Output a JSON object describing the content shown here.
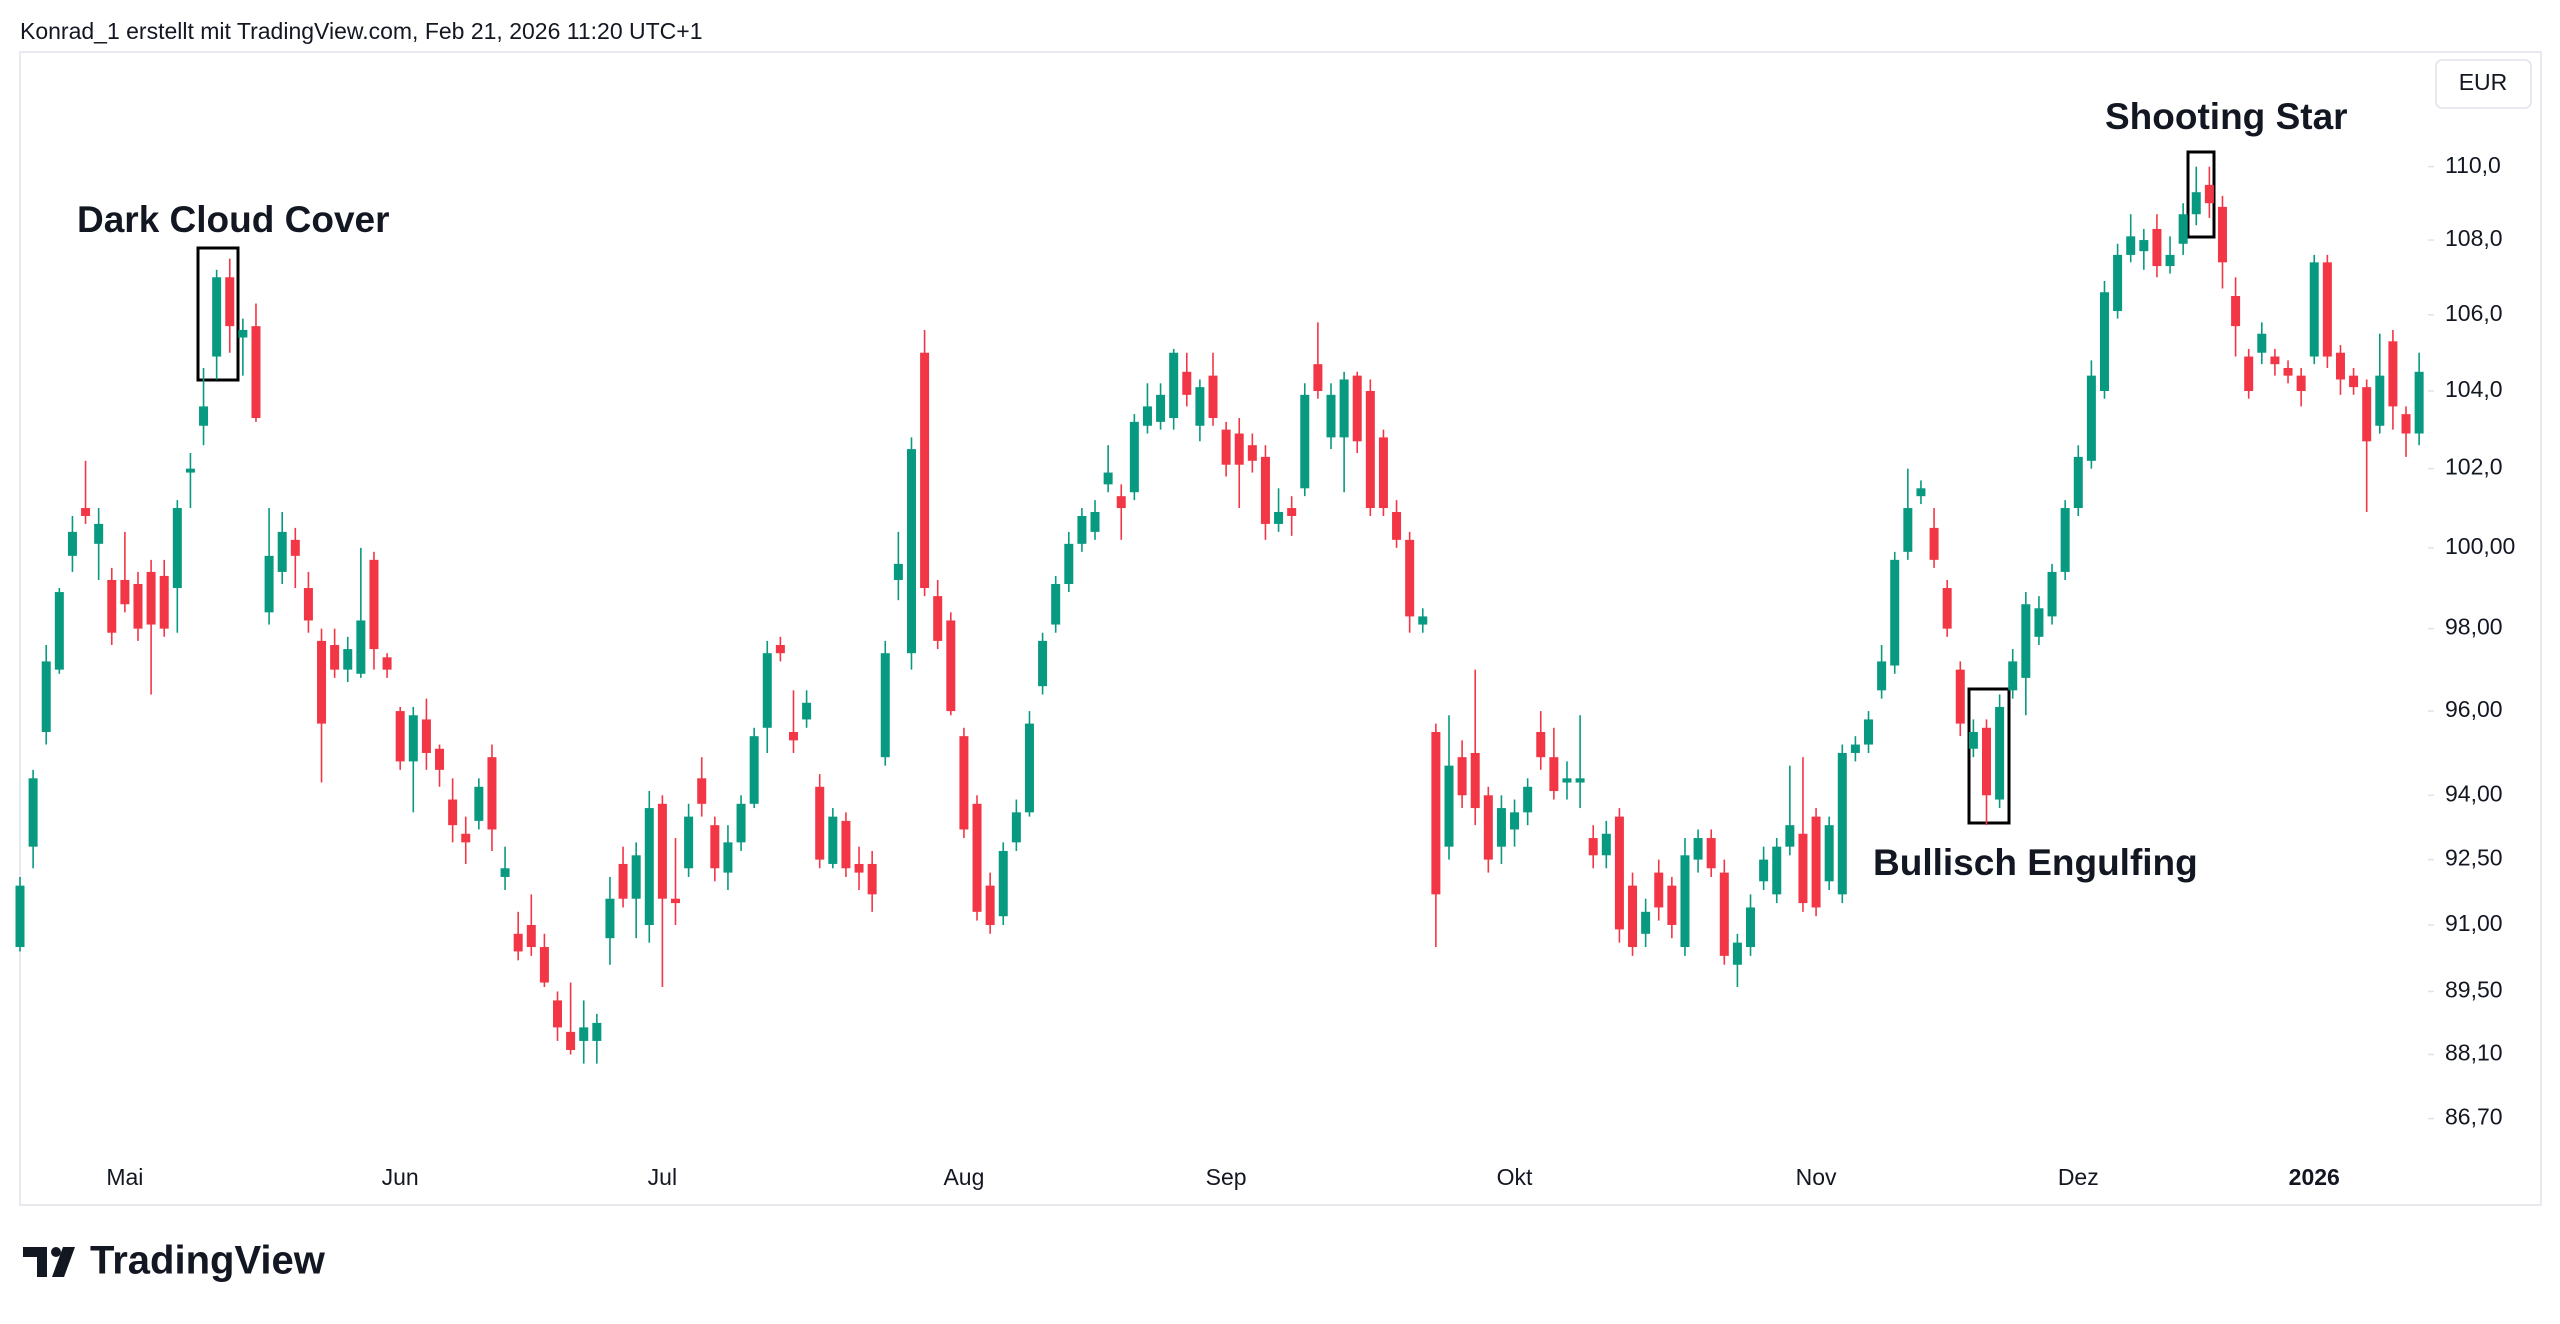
{
  "header": "Konrad_1 erstellt mit TradingView.com, Feb 21, 2026 11:20 UTC+1",
  "footer": {
    "brand": "TradingView"
  },
  "chart_data": {
    "type": "candlestick",
    "currency": "EUR",
    "log": true,
    "up_color": "#089981",
    "down_color": "#f23645",
    "annotations": [
      {
        "text": "Dark Cloud Cover"
      },
      {
        "text": "Shooting Star"
      },
      {
        "text": "Bullisch Engulfing"
      }
    ],
    "ylim": [
      86.0,
      113.2
    ],
    "yticks": [
      {
        "value": 110,
        "label": "110,0"
      },
      {
        "value": 108,
        "label": "108,0"
      },
      {
        "value": 106,
        "label": "106,0"
      },
      {
        "value": 104,
        "label": "104,0"
      },
      {
        "value": 102,
        "label": "102,0"
      },
      {
        "value": 100,
        "label": "100,00"
      },
      {
        "value": 98,
        "label": "98,00"
      },
      {
        "value": 96,
        "label": "96,00"
      },
      {
        "value": 94,
        "label": "94,00"
      },
      {
        "value": 92.5,
        "label": "92,50"
      },
      {
        "value": 91,
        "label": "91,00"
      },
      {
        "value": 89.5,
        "label": "89,50"
      },
      {
        "value": 88.1,
        "label": "88,10"
      },
      {
        "value": 86.7,
        "label": "86,70"
      }
    ],
    "categories": [
      null,
      null,
      null,
      null,
      null,
      null,
      null,
      null,
      "Mai",
      null,
      null,
      null,
      null,
      null,
      null,
      null,
      null,
      null,
      null,
      null,
      null,
      null,
      null,
      null,
      null,
      null,
      null,
      null,
      null,
      "Jun",
      null,
      null,
      null,
      null,
      null,
      null,
      null,
      null,
      null,
      null,
      null,
      null,
      null,
      null,
      null,
      null,
      null,
      null,
      null,
      "Jul",
      null,
      null,
      null,
      null,
      null,
      null,
      null,
      null,
      null,
      null,
      null,
      null,
      null,
      null,
      null,
      null,
      null,
      null,
      null,
      null,
      null,
      null,
      "Aug",
      null,
      null,
      null,
      null,
      null,
      null,
      null,
      null,
      null,
      null,
      null,
      null,
      null,
      null,
      null,
      null,
      null,
      null,
      null,
      "Sep",
      null,
      null,
      null,
      null,
      null,
      null,
      null,
      null,
      null,
      null,
      null,
      null,
      null,
      null,
      null,
      null,
      null,
      null,
      null,
      null,
      null,
      "Okt",
      null,
      null,
      null,
      null,
      null,
      null,
      null,
      null,
      null,
      null,
      null,
      null,
      null,
      null,
      null,
      null,
      null,
      null,
      null,
      null,
      null,
      null,
      "Nov",
      null,
      null,
      null,
      null,
      null,
      null,
      null,
      null,
      null,
      null,
      null,
      null,
      null,
      null,
      null,
      null,
      null,
      null,
      null,
      "Dez",
      null,
      null,
      null,
      null,
      null,
      null,
      null,
      null,
      null,
      null,
      null,
      null,
      null,
      null,
      null,
      null,
      null,
      "2026",
      null,
      null,
      null,
      null,
      null,
      null,
      null,
      null
    ],
    "open": [
      90.5,
      92.8,
      95.5,
      97.0,
      99.8,
      101.0,
      100.1,
      99.2,
      99.2,
      99.1,
      99.4,
      99.3,
      99.0,
      101.9,
      103.1,
      104.9,
      107.0,
      105.4,
      105.7,
      98.4,
      99.4,
      100.2,
      99.0,
      97.7,
      97.6,
      97.0,
      96.9,
      99.7,
      97.3,
      96.0,
      94.8,
      95.8,
      95.1,
      93.9,
      93.1,
      93.4,
      94.9,
      92.1,
      90.8,
      91.0,
      90.5,
      89.3,
      88.6,
      88.4,
      88.4,
      90.7,
      92.4,
      91.6,
      91.0,
      93.8,
      91.6,
      92.3,
      94.4,
      93.3,
      92.2,
      92.9,
      93.8,
      95.6,
      97.6,
      95.5,
      95.8,
      94.2,
      92.4,
      93.4,
      92.4,
      92.4,
      94.9,
      99.2,
      97.4,
      105.0,
      98.8,
      98.2,
      95.4,
      93.8,
      91.9,
      91.2,
      92.9,
      93.6,
      96.6,
      98.1,
      99.1,
      100.1,
      100.4,
      101.6,
      101.3,
      101.4,
      103.1,
      103.2,
      103.3,
      104.5,
      103.1,
      104.4,
      103.0,
      102.9,
      102.6,
      102.3,
      100.6,
      101.0,
      101.5,
      104.7,
      102.8,
      102.8,
      104.4,
      104.0,
      102.8,
      100.9,
      100.2,
      98.1,
      95.5,
      92.8,
      94.9,
      95.0,
      94.0,
      92.8,
      93.2,
      93.6,
      95.5,
      94.9,
      94.3,
      94.3,
      93.0,
      92.6,
      93.5,
      91.9,
      90.8,
      92.2,
      91.9,
      90.5,
      92.5,
      93.0,
      92.2,
      90.1,
      90.5,
      92.0,
      91.7,
      92.8,
      93.1,
      93.5,
      92.0,
      91.7,
      95.0,
      95.2,
      96.5,
      97.1,
      99.9,
      101.3,
      100.5,
      99.0,
      97.0,
      95.1,
      95.6,
      93.9,
      96.5,
      96.8,
      97.8,
      98.3,
      99.4,
      101.0,
      102.2,
      104.0,
      106.1,
      107.6,
      107.7,
      108.3,
      107.3,
      107.9,
      108.7,
      109.5,
      108.9,
      106.5,
      104.9,
      105.0,
      104.9,
      104.6,
      104.4,
      104.9,
      107.4,
      105.0,
      104.4,
      104.1,
      103.1,
      105.3,
      103.4,
      102.9
    ],
    "high": [
      92.1,
      94.6,
      97.6,
      99.0,
      100.8,
      102.2,
      101.0,
      99.5,
      100.4,
      99.4,
      99.7,
      99.7,
      101.2,
      102.4,
      104.6,
      107.2,
      107.5,
      105.9,
      106.3,
      101.0,
      100.9,
      100.5,
      99.4,
      98.0,
      98.0,
      97.8,
      100.0,
      99.9,
      97.4,
      96.1,
      96.1,
      96.3,
      95.2,
      94.4,
      93.5,
      94.4,
      95.2,
      92.8,
      91.3,
      91.7,
      90.8,
      89.5,
      89.7,
      89.3,
      89.0,
      92.1,
      92.8,
      92.9,
      94.1,
      94.0,
      93.0,
      93.8,
      94.9,
      93.5,
      93.3,
      94.0,
      95.6,
      97.7,
      97.8,
      96.5,
      96.5,
      94.5,
      93.7,
      93.6,
      92.8,
      92.7,
      97.7,
      100.4,
      102.8,
      105.6,
      99.2,
      98.4,
      95.6,
      94.0,
      92.2,
      92.9,
      93.9,
      96.0,
      97.9,
      99.3,
      100.4,
      101.0,
      101.2,
      102.6,
      101.6,
      103.4,
      104.2,
      104.2,
      105.1,
      105.0,
      104.3,
      105.0,
      103.2,
      103.3,
      102.9,
      102.6,
      101.5,
      101.3,
      104.2,
      105.8,
      104.2,
      104.5,
      104.5,
      104.3,
      103.0,
      101.2,
      100.4,
      98.5,
      95.7,
      95.9,
      95.3,
      97.0,
      94.2,
      94.0,
      93.9,
      94.4,
      96.0,
      95.6,
      94.8,
      95.9,
      93.3,
      93.4,
      93.7,
      92.2,
      91.6,
      92.5,
      92.1,
      93.0,
      93.2,
      93.2,
      92.5,
      90.8,
      91.7,
      92.8,
      93.0,
      94.7,
      94.9,
      93.7,
      93.5,
      95.2,
      95.4,
      96.0,
      97.6,
      99.9,
      102.0,
      101.7,
      101.0,
      99.2,
      97.2,
      95.8,
      95.8,
      96.4,
      97.5,
      98.9,
      98.8,
      99.6,
      101.2,
      102.6,
      104.8,
      106.9,
      107.9,
      108.7,
      108.3,
      108.7,
      108.1,
      109.0,
      110.0,
      110.0,
      109.2,
      107.0,
      105.1,
      105.8,
      105.1,
      104.8,
      104.6,
      107.6,
      107.6,
      105.2,
      104.6,
      104.3,
      105.5,
      105.6,
      103.6,
      105.0
    ],
    "low": [
      90.4,
      92.3,
      95.2,
      96.9,
      99.4,
      100.6,
      99.2,
      97.6,
      98.4,
      97.7,
      96.4,
      97.8,
      97.9,
      101.0,
      102.6,
      104.3,
      105.0,
      104.4,
      103.2,
      98.1,
      99.1,
      99.0,
      97.9,
      94.3,
      96.8,
      96.7,
      96.8,
      97.0,
      96.8,
      94.6,
      93.6,
      94.6,
      94.2,
      92.9,
      92.4,
      93.2,
      92.7,
      91.8,
      90.2,
      90.3,
      89.6,
      88.4,
      88.1,
      87.9,
      87.9,
      90.1,
      91.4,
      90.7,
      90.6,
      89.6,
      91.0,
      92.1,
      93.5,
      92.0,
      91.8,
      92.7,
      93.7,
      95.0,
      97.2,
      95.0,
      95.6,
      92.3,
      92.3,
      92.1,
      91.8,
      91.3,
      94.7,
      98.7,
      97.0,
      98.8,
      97.5,
      95.9,
      93.0,
      91.1,
      90.8,
      91.0,
      92.7,
      93.5,
      96.4,
      97.9,
      98.9,
      99.9,
      100.2,
      101.4,
      100.2,
      101.2,
      102.9,
      103.0,
      103.0,
      103.6,
      102.7,
      103.1,
      101.8,
      101.0,
      101.9,
      100.2,
      100.4,
      100.3,
      101.3,
      103.8,
      102.5,
      101.4,
      102.4,
      100.8,
      100.8,
      100.0,
      97.9,
      97.9,
      90.5,
      92.5,
      93.7,
      93.3,
      92.2,
      92.4,
      92.8,
      93.3,
      94.6,
      93.9,
      93.9,
      93.7,
      92.3,
      92.3,
      90.6,
      90.3,
      90.5,
      91.1,
      90.7,
      90.3,
      92.2,
      92.1,
      90.1,
      89.6,
      90.3,
      91.8,
      91.5,
      92.6,
      91.3,
      91.2,
      91.8,
      91.5,
      94.8,
      95.0,
      96.3,
      96.9,
      99.7,
      101.1,
      99.5,
      97.8,
      95.4,
      94.9,
      93.3,
      93.7,
      96.3,
      95.9,
      97.6,
      98.1,
      99.2,
      100.8,
      102.0,
      103.8,
      105.9,
      107.4,
      107.2,
      107.0,
      107.1,
      107.6,
      108.4,
      108.6,
      106.7,
      104.9,
      103.8,
      104.7,
      104.4,
      104.2,
      103.6,
      104.7,
      104.6,
      103.9,
      103.9,
      100.9,
      102.9,
      103.0,
      102.3,
      102.6
    ],
    "close": [
      91.9,
      94.4,
      97.2,
      98.9,
      100.4,
      100.8,
      100.6,
      97.9,
      98.6,
      98.0,
      98.1,
      98.0,
      101.0,
      102.0,
      103.6,
      107.0,
      105.7,
      105.6,
      103.3,
      99.8,
      100.4,
      99.8,
      98.2,
      95.7,
      97.0,
      97.5,
      98.2,
      97.5,
      97.0,
      94.8,
      95.9,
      95.0,
      94.6,
      93.3,
      92.9,
      94.2,
      93.2,
      92.3,
      90.4,
      90.5,
      89.7,
      88.7,
      88.2,
      88.7,
      88.8,
      91.6,
      91.6,
      92.6,
      93.7,
      91.6,
      91.5,
      93.5,
      93.8,
      92.3,
      92.9,
      93.8,
      95.4,
      97.4,
      97.4,
      95.3,
      96.2,
      92.5,
      93.5,
      92.3,
      92.2,
      91.7,
      97.4,
      99.6,
      102.5,
      99.0,
      97.7,
      96.0,
      93.2,
      91.3,
      91.0,
      92.7,
      93.6,
      95.7,
      97.7,
      99.1,
      100.1,
      100.8,
      100.9,
      101.9,
      101.0,
      103.2,
      103.6,
      103.9,
      105.0,
      103.9,
      104.1,
      103.3,
      102.1,
      102.1,
      102.2,
      100.6,
      100.9,
      100.8,
      103.9,
      104.0,
      103.9,
      104.3,
      102.7,
      101.0,
      101.0,
      100.2,
      98.3,
      98.3,
      91.7,
      94.7,
      94.0,
      93.7,
      92.5,
      93.7,
      93.6,
      94.2,
      94.9,
      94.1,
      94.4,
      94.4,
      92.6,
      93.1,
      90.9,
      90.5,
      91.3,
      91.4,
      91.0,
      92.6,
      93.0,
      92.3,
      90.3,
      90.6,
      91.4,
      92.5,
      92.8,
      93.3,
      91.5,
      91.4,
      93.3,
      95.0,
      95.2,
      95.8,
      97.2,
      99.7,
      101.0,
      101.5,
      99.7,
      98.0,
      95.7,
      95.5,
      94.0,
      96.1,
      97.2,
      98.6,
      98.5,
      99.4,
      101.0,
      102.3,
      104.4,
      106.6,
      107.6,
      108.1,
      108.0,
      107.3,
      107.6,
      108.7,
      109.3,
      109.0,
      107.4,
      105.7,
      104.0,
      105.5,
      104.7,
      104.4,
      104.0,
      107.4,
      104.9,
      104.3,
      104.1,
      102.7,
      104.4,
      103.6,
      102.9,
      104.5
    ]
  }
}
